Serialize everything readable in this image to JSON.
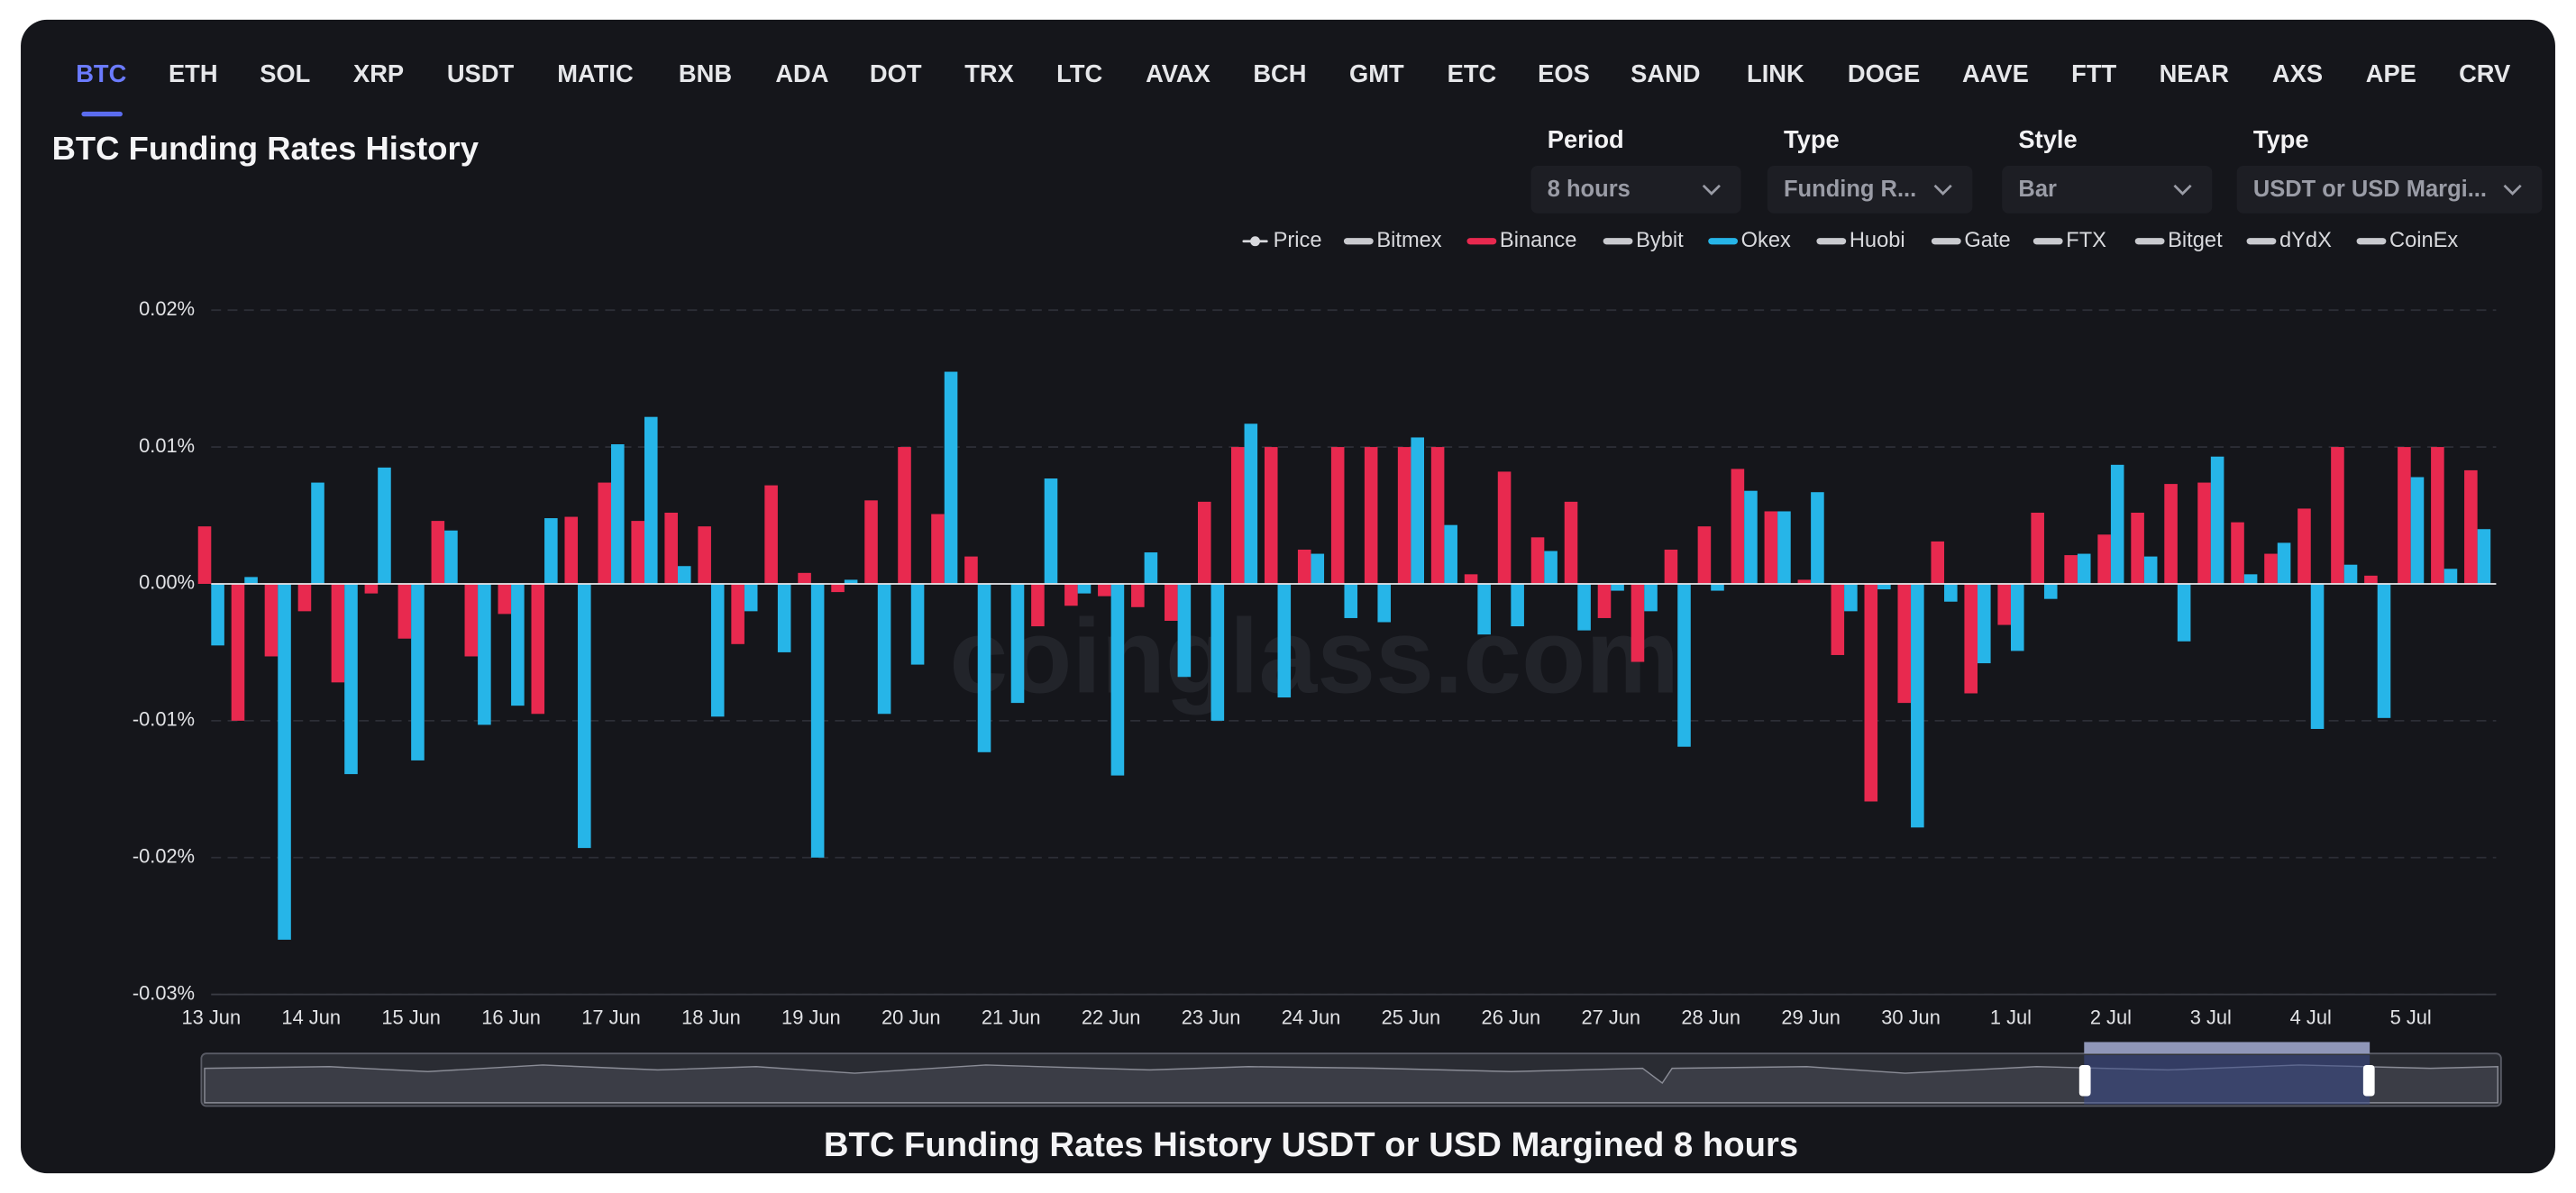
{
  "tabs": [
    "BTC",
    "ETH",
    "SOL",
    "XRP",
    "USDT",
    "MATIC",
    "BNB",
    "ADA",
    "DOT",
    "TRX",
    "LTC",
    "AVAX",
    "BCH",
    "GMT",
    "ETC",
    "EOS",
    "SAND",
    "LINK",
    "DOGE",
    "AAVE",
    "FTT",
    "NEAR",
    "AXS",
    "APE",
    "CRV"
  ],
  "active_tab": 0,
  "controls": [
    {
      "label": "Period",
      "value": "8 hours"
    },
    {
      "label": "Type",
      "value": "Funding R..."
    },
    {
      "label": "Style",
      "value": "Bar"
    },
    {
      "label": "Type",
      "value": "USDT or USD Margi..."
    }
  ],
  "caption": "BTC Funding Rates History USDT or USD Margined 8 hours",
  "chart_data": {
    "type": "bar",
    "title": "BTC Funding Rates History",
    "watermark": "coinglass.com",
    "categories": [
      "13 Jun",
      null,
      null,
      "14 Jun",
      null,
      null,
      "15 Jun",
      null,
      null,
      "16 Jun",
      null,
      null,
      "17 Jun",
      null,
      null,
      "18 Jun",
      null,
      null,
      "19 Jun",
      null,
      null,
      "20 Jun",
      null,
      null,
      "21 Jun",
      null,
      null,
      "22 Jun",
      null,
      null,
      "23 Jun",
      null,
      null,
      "24 Jun",
      null,
      null,
      "25 Jun",
      null,
      null,
      "26 Jun",
      null,
      null,
      "27 Jun",
      null,
      null,
      "28 Jun",
      null,
      null,
      "29 Jun",
      null,
      null,
      "30 Jun",
      null,
      null,
      "1 Jul",
      null,
      null,
      "2 Jul",
      null,
      null,
      "3 Jul",
      null,
      null,
      "4 Jul",
      null,
      null,
      "5 Jul",
      null,
      null
    ],
    "series": [
      {
        "name": "Price",
        "color": "#d8d9dd"
      },
      {
        "name": "Bitmex",
        "color": "#c9cacf"
      },
      {
        "name": "Binance",
        "color": "#e8294f",
        "values": [
          0.0042,
          -0.01,
          -0.0053,
          -0.002,
          -0.0072,
          -0.0007,
          -0.004,
          0.0046,
          -0.0053,
          -0.0022,
          -0.0095,
          0.0049,
          0.0074,
          0.0046,
          0.0052,
          0.0042,
          -0.0044,
          0.0072,
          0.0008,
          -0.0006,
          0.0061,
          0.01,
          0.0051,
          0.002,
          0,
          -0.0031,
          -0.0016,
          -0.0009,
          -0.0017,
          -0.0027,
          0.006,
          0.01,
          0.01,
          0.0025,
          0.01,
          0.01,
          0.01,
          0.01,
          0.0007,
          0.0082,
          0.0034,
          0.006,
          -0.0025,
          -0.0057,
          0.0025,
          0.0042,
          0.0084,
          0.0053,
          0.0003,
          -0.0052,
          -0.0159,
          -0.0087,
          0.0031,
          -0.008,
          -0.003,
          0.0052,
          0.0021,
          0.0036,
          0.0052,
          0.0073,
          0.0074,
          0.0045,
          0.0022,
          0.0055,
          0.01,
          0.0006,
          0.01,
          0.01,
          0.0083
        ]
      },
      {
        "name": "Bybit",
        "color": "#c9cacf"
      },
      {
        "name": "Okex",
        "color": "#26b5e8",
        "values": [
          -0.0045,
          0.0005,
          -0.026,
          0.0074,
          -0.0139,
          0.0085,
          -0.0129,
          0.0039,
          -0.0103,
          -0.0089,
          0.0048,
          -0.0193,
          0.0102,
          0.0122,
          0.0013,
          -0.0097,
          -0.002,
          -0.005,
          -0.02,
          0.0003,
          -0.0095,
          -0.0059,
          0.0155,
          -0.0123,
          -0.0087,
          0.0077,
          -0.0007,
          -0.014,
          0.0023,
          -0.0068,
          -0.01,
          0.0117,
          -0.0083,
          0.0022,
          -0.0025,
          -0.0028,
          0.0107,
          0.0043,
          -0.0037,
          -0.0031,
          0.0024,
          -0.0034,
          -0.0005,
          -0.002,
          -0.0119,
          -0.0005,
          0.0068,
          0.0053,
          0.0067,
          -0.002,
          -0.0004,
          -0.0178,
          -0.0013,
          -0.0058,
          -0.0049,
          -0.0011,
          0.0022,
          0.0087,
          0.002,
          -0.0042,
          0.0093,
          0.0007,
          0.003,
          -0.0106,
          0.0014,
          -0.0098,
          0.0078,
          0.0011,
          0.004
        ]
      },
      {
        "name": "Huobi",
        "color": "#c9cacf"
      },
      {
        "name": "Gate",
        "color": "#c9cacf"
      },
      {
        "name": "FTX",
        "color": "#c9cacf"
      },
      {
        "name": "Bitget",
        "color": "#c9cacf"
      },
      {
        "name": "dYdX",
        "color": "#c9cacf"
      },
      {
        "name": "CoinEx",
        "color": "#c9cacf"
      }
    ],
    "ylim": [
      -0.03,
      0.02
    ],
    "yticks": [
      {
        "value": -0.03,
        "label": "-0.03%"
      },
      {
        "value": -0.02,
        "label": "-0.02%"
      },
      {
        "value": -0.01,
        "label": "-0.01%"
      },
      {
        "value": 0,
        "label": "0.00%"
      },
      {
        "value": 0.01,
        "label": "0.01%"
      },
      {
        "value": 0.02,
        "label": "0.02%"
      }
    ],
    "grid": true
  }
}
